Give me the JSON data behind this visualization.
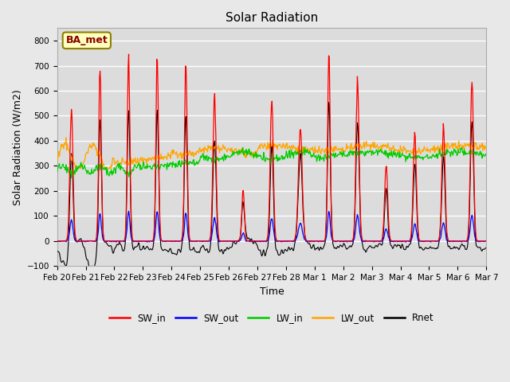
{
  "title": "Solar Radiation",
  "xlabel": "Time",
  "ylabel": "Solar Radiation (W/m2)",
  "ylim": [
    -100,
    850
  ],
  "yticks": [
    -100,
    0,
    100,
    200,
    300,
    400,
    500,
    600,
    700,
    800
  ],
  "date_labels": [
    "Feb 20",
    "Feb 21",
    "Feb 22",
    "Feb 23",
    "Feb 24",
    "Feb 25",
    "Feb 26",
    "Feb 27",
    "Feb 28",
    "Mar 1",
    "Mar 2",
    "Mar 3",
    "Mar 4",
    "Mar 5",
    "Mar 6",
    "Mar 7"
  ],
  "annotation": "BA_met",
  "legend_entries": [
    "SW_in",
    "SW_out",
    "LW_in",
    "LW_out",
    "Rnet"
  ],
  "line_colors": [
    "#FF0000",
    "#0000FF",
    "#00CC00",
    "#FFA500",
    "#000000"
  ],
  "background_color": "#E8E8E8",
  "plot_bg_color": "#DCDCDC",
  "grid_color": "#FFFFFF",
  "n_days": 15
}
